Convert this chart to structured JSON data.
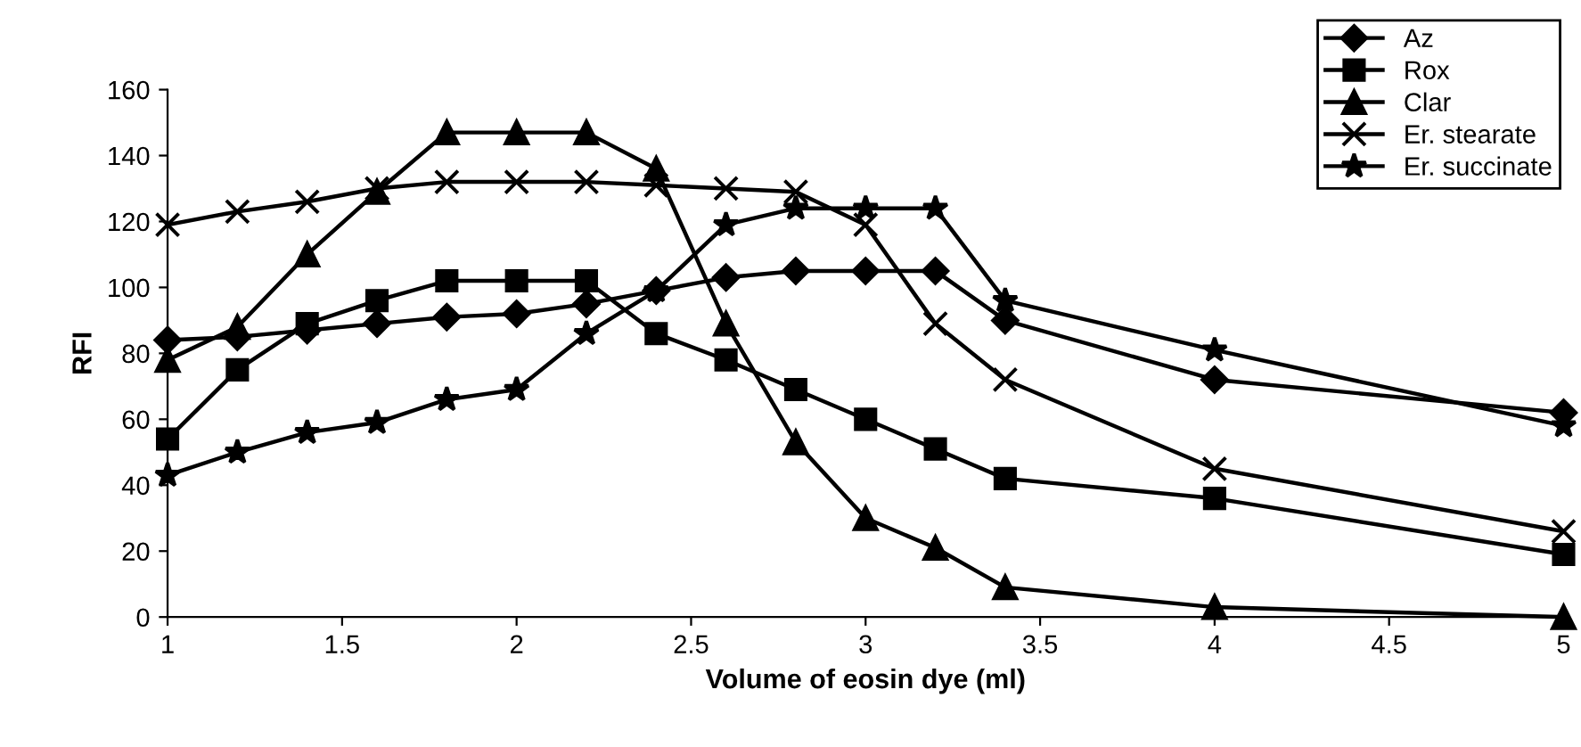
{
  "chart_data": {
    "type": "line",
    "xlabel": "Volume of eosin dye (ml)",
    "ylabel": "RFI",
    "x": [
      1,
      1.2,
      1.4,
      1.6,
      1.8,
      2,
      2.2,
      2.4,
      2.6,
      2.8,
      3,
      3.2,
      3.4,
      4,
      5
    ],
    "xlim": [
      1,
      5
    ],
    "xticks": [
      1,
      1.5,
      2,
      2.5,
      3,
      3.5,
      4,
      4.5,
      5
    ],
    "ylim": [
      0,
      160
    ],
    "yticks": [
      0,
      20,
      40,
      60,
      80,
      100,
      120,
      140,
      160
    ],
    "grid": false,
    "legend": "top right",
    "line_style": "solid",
    "series": [
      {
        "name": "Az",
        "color": "#000000",
        "marker": "diamond",
        "values": [
          84,
          85,
          87,
          89,
          91,
          92,
          95,
          99,
          103,
          105,
          105,
          105,
          90,
          72,
          62
        ]
      },
      {
        "name": "Rox",
        "color": "#000000",
        "marker": "square",
        "values": [
          54,
          75,
          89,
          96,
          102,
          102,
          102,
          86,
          78,
          69,
          60,
          51,
          42,
          36,
          19
        ]
      },
      {
        "name": "Clar",
        "color": "#000000",
        "marker": "triangle",
        "values": [
          78,
          88,
          110,
          129,
          147,
          147,
          147,
          136,
          89,
          53,
          30,
          21,
          9,
          3,
          0
        ]
      },
      {
        "name": "Er. stearate",
        "color": "#000000",
        "marker": "cross",
        "values": [
          119,
          123,
          126,
          130,
          132,
          132,
          132,
          131,
          130,
          129,
          119,
          89,
          72,
          45,
          26
        ]
      },
      {
        "name": "Er. succinate",
        "color": "#000000",
        "marker": "star",
        "values": [
          43,
          50,
          56,
          59,
          66,
          69,
          86,
          99,
          119,
          124,
          124,
          124,
          96,
          81,
          58
        ]
      }
    ]
  }
}
